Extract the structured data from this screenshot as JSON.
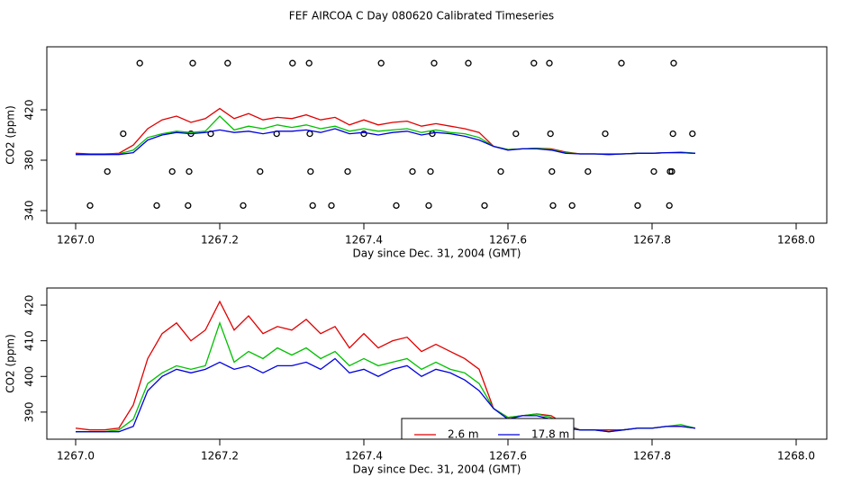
{
  "chart_data": [
    {
      "type": "line",
      "title": "FEF AIRCOA C  Day 080620  Calibrated Timeseries",
      "x_label": "Day since Dec. 31, 2004 (GMT)",
      "y_label": "CO2 (ppm)",
      "xlim": [
        1266.96,
        1268.0425
      ],
      "ylim": [
        330,
        470
      ],
      "xticks": [
        {
          "value": 1267,
          "label": "1267.0"
        },
        1267.2,
        1267.4,
        1267.6,
        1267.8,
        {
          "value": 1268,
          "label": "1268.0"
        }
      ],
      "yticks": [
        340,
        380,
        420
      ],
      "x": [
        1267.0,
        1267.02,
        1267.04,
        1267.06,
        1267.08,
        1267.1,
        1267.12,
        1267.14,
        1267.16,
        1267.18,
        1267.2,
        1267.22,
        1267.24,
        1267.26,
        1267.28,
        1267.3,
        1267.32,
        1267.34,
        1267.36,
        1267.38,
        1267.4,
        1267.42,
        1267.44,
        1267.46,
        1267.48,
        1267.5,
        1267.52,
        1267.54,
        1267.56,
        1267.58,
        1267.6,
        1267.62,
        1267.64,
        1267.66,
        1267.68,
        1267.7,
        1267.72,
        1267.74,
        1267.76,
        1267.78,
        1267.8,
        1267.82,
        1267.84,
        1267.86
      ],
      "series": [
        {
          "color": "#e00000",
          "values": [
            385.5,
            385,
            385,
            385.5,
            392,
            405,
            412,
            415,
            410,
            413,
            421,
            413,
            417,
            412,
            414,
            413,
            416,
            412,
            414,
            408,
            412,
            408,
            410,
            411,
            407,
            409,
            407,
            405,
            402,
            391,
            388.5,
            389,
            389.5,
            389,
            386.5,
            385,
            385,
            385,
            385,
            385.5,
            385.5,
            386,
            386,
            385.5
          ]
        },
        {
          "color": "#00c000",
          "values": [
            384.5,
            384.5,
            384.5,
            385,
            388,
            398,
            401,
            403,
            402,
            403,
            415,
            404,
            407,
            405,
            408,
            406,
            408,
            405,
            407,
            403,
            405,
            403,
            404,
            405,
            402,
            404,
            402,
            401,
            398,
            391,
            388.5,
            389,
            389.5,
            388.5,
            386,
            385,
            385,
            384.5,
            385,
            385.5,
            385.5,
            386,
            386.5,
            385.5
          ]
        },
        {
          "color": "#0000e0",
          "values": [
            384.5,
            384.5,
            384.5,
            384.5,
            386,
            396,
            400,
            402,
            401,
            402,
            404,
            402,
            403,
            401,
            403,
            403,
            404,
            402,
            405,
            401,
            402,
            400,
            402,
            403,
            400,
            402,
            401,
            399,
            396,
            391,
            388,
            389,
            389,
            388,
            385.5,
            385,
            385,
            384.5,
            385,
            385.5,
            385.5,
            386,
            386,
            385.5
          ]
        }
      ],
      "points": {
        "color": "#000000",
        "x": [
          1267.089,
          1267.1625,
          1267.211,
          1267.301,
          1267.324,
          1267.424,
          1267.4975,
          1267.545,
          1267.636,
          1267.6575,
          1267.7575,
          1267.83,
          1267.066,
          1267.16,
          1267.1875,
          1267.279,
          1267.325,
          1267.4,
          1267.495,
          1267.611,
          1267.659,
          1267.735,
          1267.829,
          1267.856,
          1267.044,
          1267.134,
          1267.1575,
          1267.256,
          1267.326,
          1267.3775,
          1267.4675,
          1267.4925,
          1267.59,
          1267.661,
          1267.711,
          1267.8025,
          1267.825,
          1267.8275,
          1267.02,
          1267.1125,
          1267.156,
          1267.2325,
          1267.329,
          1267.355,
          1267.445,
          1267.49,
          1267.5675,
          1267.6625,
          1267.689,
          1267.78,
          1267.824
        ],
        "values": [
          457,
          457,
          457,
          457,
          457,
          457,
          457,
          457,
          457,
          457,
          457,
          457,
          401,
          401,
          401,
          401,
          401,
          401,
          401,
          401,
          401,
          401,
          401,
          401,
          371,
          371,
          371,
          371,
          371,
          371,
          371,
          371,
          371,
          371,
          371,
          371,
          371,
          371,
          344,
          344,
          344,
          344,
          344,
          344,
          344,
          344,
          344,
          344,
          344,
          344,
          344
        ]
      }
    },
    {
      "type": "line",
      "x_label": "Day since Dec. 31, 2004 (GMT)",
      "y_label": "CO2 (ppm)",
      "xlim": [
        1266.96,
        1268.0425
      ],
      "ylim": [
        382.4,
        424.8
      ],
      "xticks": [
        {
          "value": 1267,
          "label": "1267.0"
        },
        1267.2,
        1267.4,
        1267.6,
        1267.8,
        {
          "value": 1268,
          "label": "1268.0"
        }
      ],
      "yticks": [
        390,
        400,
        410,
        420
      ],
      "legend": "bottom",
      "x": [
        1267.0,
        1267.02,
        1267.04,
        1267.06,
        1267.08,
        1267.1,
        1267.12,
        1267.14,
        1267.16,
        1267.18,
        1267.2,
        1267.22,
        1267.24,
        1267.26,
        1267.28,
        1267.3,
        1267.32,
        1267.34,
        1267.36,
        1267.38,
        1267.4,
        1267.42,
        1267.44,
        1267.46,
        1267.48,
        1267.5,
        1267.52,
        1267.54,
        1267.56,
        1267.58,
        1267.6,
        1267.62,
        1267.64,
        1267.66,
        1267.68,
        1267.7,
        1267.72,
        1267.74,
        1267.76,
        1267.78,
        1267.8,
        1267.82,
        1267.84,
        1267.86
      ],
      "series": [
        {
          "name": "2.6 m",
          "color": "#e00000",
          "values": [
            385.5,
            385,
            385,
            385.5,
            392,
            405,
            412,
            415,
            410,
            413,
            421,
            413,
            417,
            412,
            414,
            413,
            416,
            412,
            414,
            408,
            412,
            408,
            410,
            411,
            407,
            409,
            407,
            405,
            402,
            391,
            388.5,
            389,
            389.5,
            389,
            386.5,
            385,
            385,
            385,
            385,
            385.5,
            385.5,
            386,
            386,
            385.5
          ]
        },
        {
          "color": "#00c000",
          "values": [
            384.5,
            384.5,
            384.5,
            385,
            388,
            398,
            401,
            403,
            402,
            403,
            415,
            404,
            407,
            405,
            408,
            406,
            408,
            405,
            407,
            403,
            405,
            403,
            404,
            405,
            402,
            404,
            402,
            401,
            398,
            391,
            388.5,
            389,
            389.5,
            388.5,
            386,
            385,
            385,
            384.5,
            385,
            385.5,
            385.5,
            386,
            386.5,
            385.5
          ]
        },
        {
          "name": "17.8 m",
          "color": "#0000e0",
          "values": [
            384.5,
            384.5,
            384.5,
            384.5,
            386,
            396,
            400,
            402,
            401,
            402,
            404,
            402,
            403,
            401,
            403,
            403,
            404,
            402,
            405,
            401,
            402,
            400,
            402,
            403,
            400,
            402,
            401,
            399,
            396,
            391,
            388,
            389,
            389,
            388,
            385.5,
            385,
            385,
            384.5,
            385,
            385.5,
            385.5,
            386,
            386,
            385.5
          ]
        }
      ]
    }
  ]
}
